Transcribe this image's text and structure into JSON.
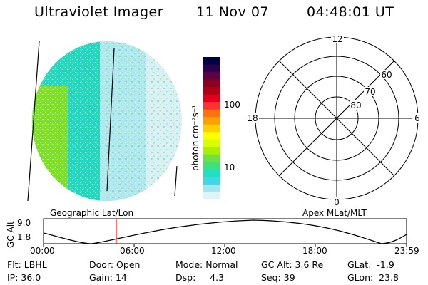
{
  "header": {
    "instrument": "Ultraviolet Imager",
    "date": "11 Nov 07",
    "time": "04:48:01 UT"
  },
  "colorbar": {
    "label": "photon cm⁻²s⁻¹",
    "ticks": [
      "100",
      "10"
    ],
    "colors": [
      "#000040",
      "#2a0050",
      "#600040",
      "#8a0020",
      "#b00018",
      "#e0001e",
      "#ff3030",
      "#ff7010",
      "#ffa000",
      "#ffd000",
      "#ffff00",
      "#d8ff00",
      "#a8f000",
      "#70e040",
      "#40e080",
      "#20e0c0",
      "#40d8e8",
      "#a0e8f0",
      "#e0f4f8"
    ]
  },
  "polar_plot": {
    "hour_labels": [
      "12",
      "18",
      "6",
      "0"
    ],
    "lat_labels": [
      "60",
      "70",
      "80"
    ]
  },
  "imager_colors": {
    "bright": "#80e020",
    "mid": "#20d8c0",
    "dim": "#b0e8f0",
    "faint": "#d8f0f4"
  },
  "orbit_plot": {
    "left_label": "Geographic Lat/Lon",
    "right_label": "Apex MLat/MLT",
    "y_title": "GC Alt",
    "y_ticks": [
      "9.0",
      "1.8"
    ],
    "x_ticks": [
      "00:00",
      "06:00",
      "12:00",
      "18:00",
      "23:59"
    ],
    "current_time": "04:48",
    "marker_color": "#ff0000"
  },
  "info_grid": {
    "row1": [
      {
        "label": "Flt:",
        "value": "LBHL"
      },
      {
        "label": "Door:",
        "value": "Open"
      },
      {
        "label": "Mode:",
        "value": "Normal"
      },
      {
        "label": "GC Alt:",
        "value": "3.6 Re"
      },
      {
        "label": "GLat:",
        "value": "-1.9"
      }
    ],
    "row2": [
      {
        "label": "IP:",
        "value": "36.0"
      },
      {
        "label": "Gain:",
        "value": "14"
      },
      {
        "label": "Dsp:",
        "value": "4.3"
      },
      {
        "label": "Seq:",
        "value": "39"
      },
      {
        "label": "GLon:",
        "value": "23.8"
      }
    ]
  }
}
